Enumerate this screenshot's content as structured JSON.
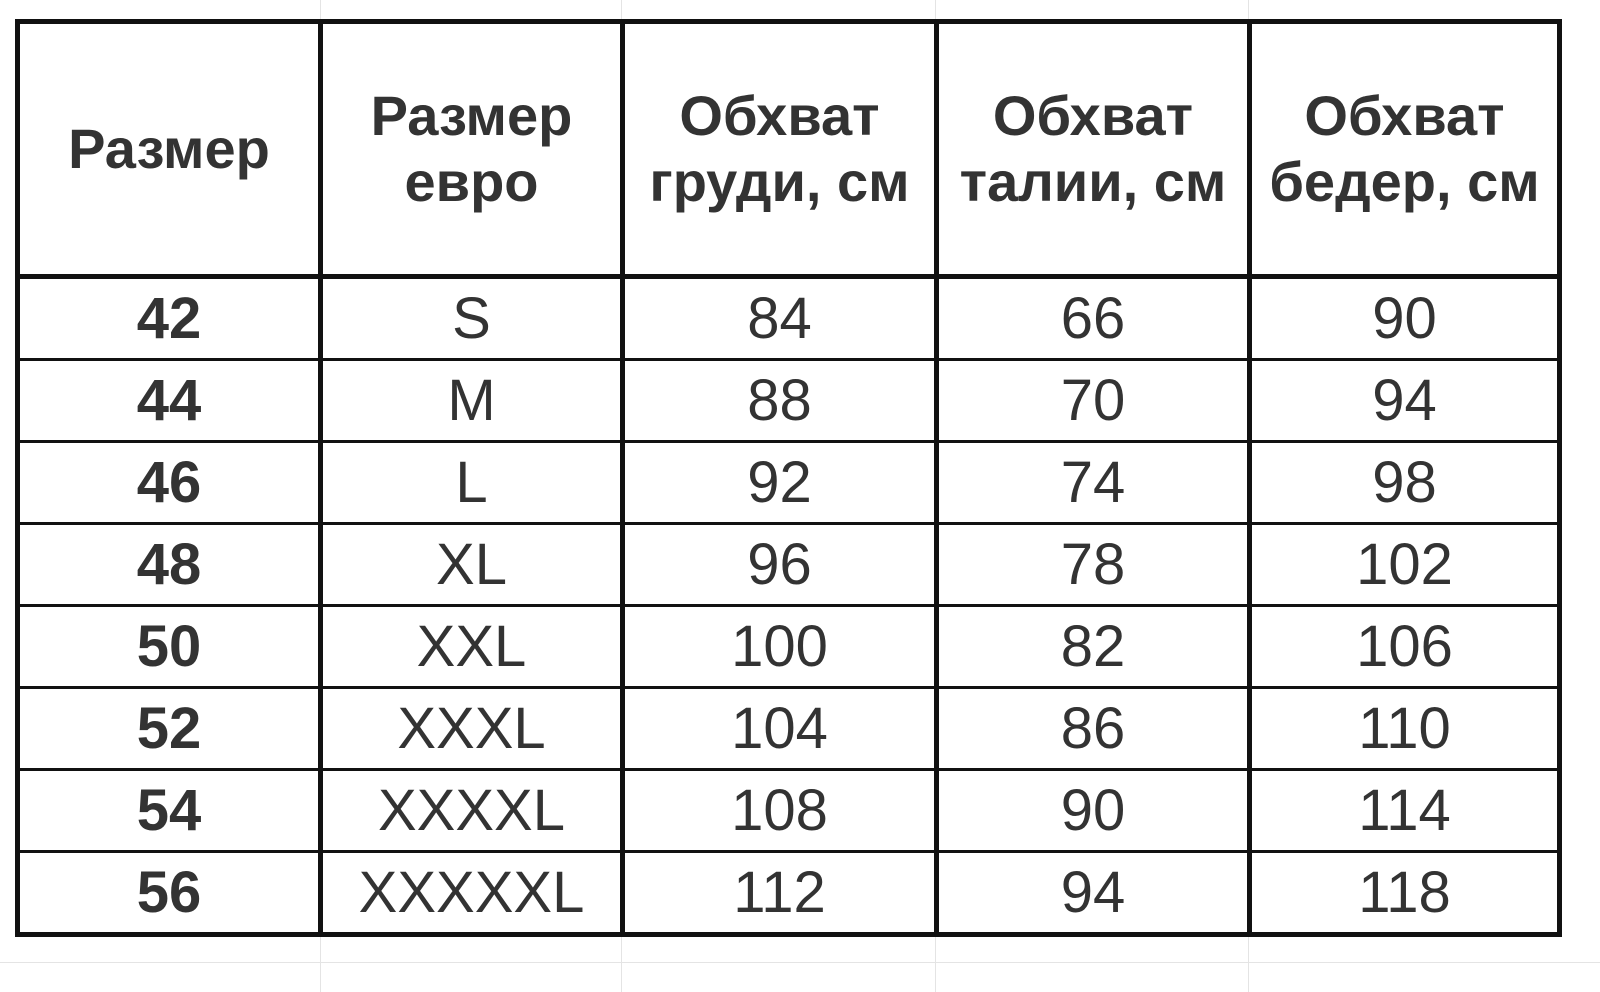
{
  "table": {
    "headers": [
      "Размер",
      "Размер евро",
      "Обхват груди, см",
      "Обхват талии, см",
      "Обхват бедер, см"
    ],
    "rows": [
      [
        "42",
        "S",
        "84",
        "66",
        "90"
      ],
      [
        "44",
        "M",
        "88",
        "70",
        "94"
      ],
      [
        "46",
        "L",
        "92",
        "74",
        "98"
      ],
      [
        "48",
        "XL",
        "96",
        "78",
        "102"
      ],
      [
        "50",
        "XXL",
        "100",
        "82",
        "106"
      ],
      [
        "52",
        "XXXL",
        "104",
        "86",
        "110"
      ],
      [
        "54",
        "XXXXL",
        "108",
        "90",
        "114"
      ],
      [
        "56",
        "XXXXXL",
        "112",
        "94",
        "118"
      ]
    ]
  },
  "colors": {
    "border": "#111111",
    "text": "#333333",
    "gridline": "#e4e4e4"
  }
}
